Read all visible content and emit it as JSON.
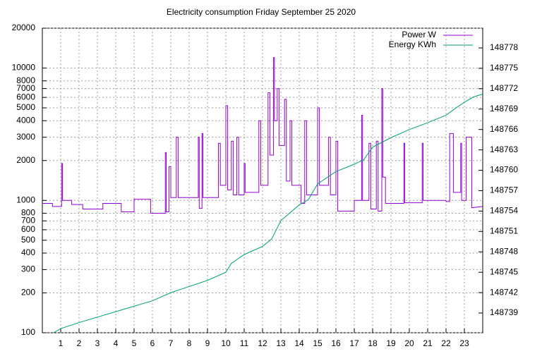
{
  "chart_data": {
    "type": "line",
    "title": "Electricity consumption Friday September 25 2020",
    "xlim": [
      0,
      24
    ],
    "xticks": [
      1,
      2,
      3,
      4,
      5,
      6,
      7,
      8,
      9,
      10,
      11,
      12,
      13,
      14,
      15,
      16,
      17,
      18,
      19,
      20,
      21,
      22,
      23
    ],
    "ylim": [
      100,
      20000
    ],
    "log_y": true,
    "yticks": [
      100,
      200,
      300,
      400,
      500,
      600,
      700,
      800,
      1000,
      2000,
      3000,
      4000,
      5000,
      6000,
      7000,
      8000,
      10000,
      20000
    ],
    "y2lim": [
      148736.1,
      148780.9
    ],
    "y2ticks": [
      148739,
      148742,
      148745,
      148748,
      148751,
      148754,
      148757,
      148760,
      148763,
      148766,
      148769,
      148772,
      148775,
      148778
    ],
    "grid": true,
    "legend": "top-right",
    "series": [
      {
        "name": "Power W",
        "color": "#9400d3",
        "x": [
          0,
          0.55,
          0.55,
          1.05,
          1.05,
          1.1,
          1.1,
          1.6,
          1.6,
          2.2,
          2.2,
          3.3,
          3.3,
          4.3,
          4.3,
          5.0,
          5.0,
          5.9,
          5.9,
          6.7,
          6.7,
          6.75,
          6.75,
          6.9,
          6.9,
          7.0,
          7.0,
          7.3,
          7.3,
          7.4,
          7.4,
          8.5,
          8.5,
          8.55,
          8.55,
          8.7,
          8.7,
          8.75,
          8.75,
          9.6,
          9.6,
          9.7,
          9.7,
          10.0,
          10.0,
          10.1,
          10.1,
          10.3,
          10.3,
          10.4,
          10.4,
          10.6,
          10.6,
          10.7,
          10.7,
          11.0,
          11.0,
          11.05,
          11.05,
          11.8,
          11.8,
          11.9,
          11.9,
          12.3,
          12.3,
          12.4,
          12.4,
          12.6,
          12.6,
          12.65,
          12.65,
          12.8,
          12.8,
          12.9,
          12.9,
          13.2,
          13.2,
          13.3,
          13.3,
          13.5,
          13.5,
          13.6,
          13.6,
          14.1,
          14.1,
          14.3,
          14.3,
          14.4,
          14.4,
          15.0,
          15.0,
          15.1,
          15.1,
          15.6,
          15.6,
          15.7,
          15.7,
          16.0,
          16.0,
          16.1,
          16.1,
          17.0,
          17.0,
          17.4,
          17.4,
          17.45,
          17.45,
          17.8,
          17.8,
          17.9,
          17.9,
          18.2,
          18.2,
          18.3,
          18.3,
          18.5,
          18.5,
          18.55,
          18.55,
          18.7,
          18.7,
          19.7,
          19.7,
          19.75,
          19.75,
          20.7,
          20.7,
          20.75,
          20.75,
          22.0,
          22.0,
          22.2,
          22.2,
          22.4,
          22.4,
          22.8,
          22.8,
          22.85,
          22.85,
          23.1,
          23.1,
          23.4,
          23.4,
          24
        ],
        "values": [
          950,
          950,
          900,
          900,
          1900,
          1900,
          1000,
          1000,
          930,
          930,
          860,
          860,
          950,
          950,
          820,
          820,
          1020,
          1020,
          800,
          800,
          2300,
          2300,
          820,
          820,
          1800,
          1800,
          1050,
          1050,
          3000,
          3000,
          1050,
          1050,
          3000,
          3000,
          870,
          870,
          3200,
          3200,
          1050,
          1050,
          2700,
          2700,
          1300,
          1300,
          5200,
          5200,
          1200,
          1200,
          2800,
          2800,
          1100,
          1100,
          3000,
          3000,
          1100,
          1100,
          1900,
          1900,
          1150,
          1150,
          4000,
          4000,
          1300,
          1300,
          6500,
          6500,
          2200,
          2200,
          12000,
          12000,
          4000,
          4000,
          7000,
          7000,
          2600,
          2600,
          5800,
          5800,
          1400,
          1400,
          4000,
          4000,
          1300,
          1300,
          950,
          950,
          4000,
          4000,
          1100,
          1100,
          5000,
          5000,
          1300,
          1300,
          3000,
          3000,
          1100,
          1100,
          2800,
          2800,
          830,
          830,
          1000,
          1000,
          4400,
          4400,
          1000,
          1000,
          2700,
          2700,
          860,
          860,
          2800,
          2800,
          830,
          830,
          7000,
          7000,
          1500,
          1500,
          950,
          950,
          2700,
          2700,
          960,
          960,
          2700,
          2700,
          1000,
          1000,
          980,
          980,
          3200,
          3200,
          1150,
          1150,
          2700,
          2700,
          1000,
          1000,
          3000,
          3000,
          880,
          900
        ]
      },
      {
        "name": "Energy KWh",
        "color": "#009e73",
        "axis": "y2",
        "x": [
          0.6,
          1,
          2,
          3,
          4,
          5,
          6,
          7,
          8,
          9,
          10,
          10.3,
          11,
          12,
          12.5,
          13,
          14,
          14.5,
          15,
          16,
          17,
          17.5,
          18,
          19,
          20,
          21,
          22,
          22.5,
          23,
          23.5,
          24
        ],
        "values": [
          148736.1,
          148736.7,
          148737.6,
          148738.4,
          148739.2,
          148740,
          148740.8,
          148742,
          148742.9,
          148743.8,
          148745,
          148746.3,
          148747.6,
          148748.8,
          148749.9,
          148752.6,
          148754.9,
          148755.7,
          148758,
          148759.8,
          148760.9,
          148761.5,
          148763.4,
          148764.8,
          148766,
          148767,
          148768.1,
          148769.1,
          148770,
          148770.8,
          148771.2
        ]
      }
    ]
  }
}
